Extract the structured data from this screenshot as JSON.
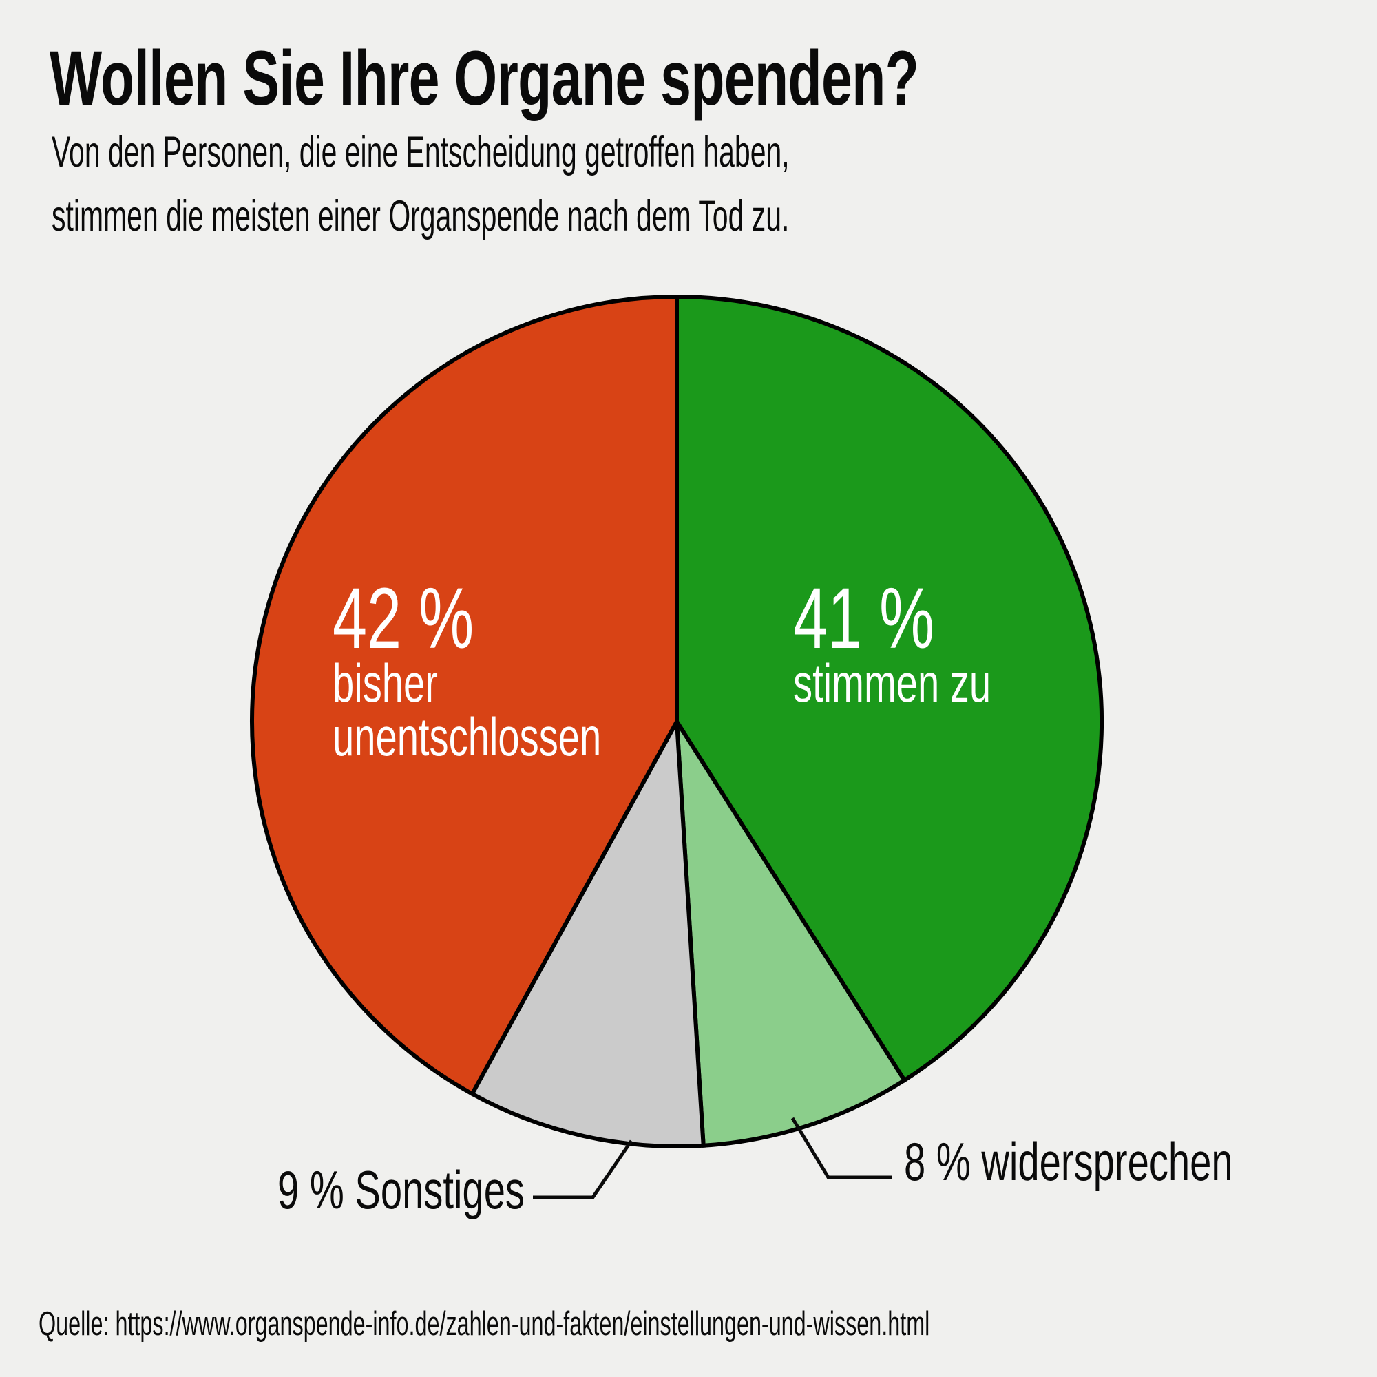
{
  "page": {
    "background_color": "#F0F0EE",
    "text_color": "#0A0A0A",
    "title": "Wollen Sie Ihre Organe spenden?",
    "subtitle_line1": "Von den Personen, die eine Entscheidung getroffen haben,",
    "subtitle_line2": "stimmen die meisten einer Organspende nach dem Tod zu.",
    "source": "Quelle: https://www.organspende-info.de/zahlen-und-fakten/einstellungen-und-wissen.html"
  },
  "chart_data": {
    "type": "pie",
    "title": "Wollen Sie Ihre Organe spenden?",
    "start_angle": "top",
    "direction": "clockwise",
    "outline_color": "#000000",
    "legend": "none",
    "slices": [
      {
        "name": "stimmen-zu",
        "value_pct": 41,
        "color": "#1B991B",
        "value_label": "41 %",
        "text_label": "stimmen zu",
        "label_placement": "inside",
        "label_color": "#FFFFFF"
      },
      {
        "name": "widersprechen",
        "value_pct": 8,
        "color": "#8BCE8B",
        "callout_label": "8 % widersprechen",
        "label_placement": "outside-callout",
        "label_color": "#0A0A0A"
      },
      {
        "name": "sonstiges",
        "value_pct": 9,
        "color": "#CBCBCB",
        "callout_label": "9 % Sonstiges",
        "label_placement": "outside-callout",
        "label_color": "#0A0A0A"
      },
      {
        "name": "bisher-unentschlossen",
        "value_pct": 42,
        "color": "#D84315",
        "value_label": "42 %",
        "text_label_lines": [
          "bisher",
          "unentschlossen"
        ],
        "label_placement": "inside",
        "label_color": "#FFFFFF"
      }
    ]
  }
}
